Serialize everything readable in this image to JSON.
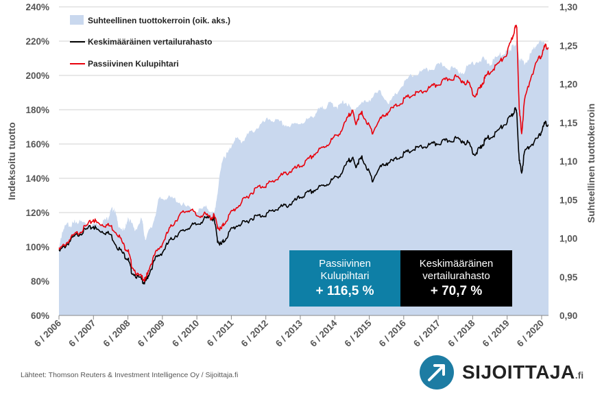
{
  "colors": {
    "area": "#c9d8ee",
    "passive": "#e8000b",
    "average": "#000000",
    "grid": "#d0d0d0",
    "axis_text": "#555555",
    "box_passive": "#0e7fa6",
    "box_average": "#000000",
    "logo_blue": "#1d7ca3"
  },
  "chart_data": {
    "type": "line",
    "ylabel": "Indeksoitu tuotto",
    "y2label": "Suhteellinen tuottokerroin",
    "ylim": [
      60,
      240
    ],
    "y_ticks": [
      "240%",
      "220%",
      "200%",
      "180%",
      "160%",
      "140%",
      "120%",
      "100%",
      "80%",
      "60%"
    ],
    "y2lim": [
      0.9,
      1.3
    ],
    "y2_ticks": [
      "1,30",
      "1,25",
      "1,20",
      "1,15",
      "1,10",
      "1,05",
      "1,00",
      "0,95",
      "0,90"
    ],
    "x_range": [
      2006.5,
      2020.7
    ],
    "x_ticks": [
      "6 / 2006",
      "6 / 2007",
      "6 / 2008",
      "6 / 2009",
      "6 / 2010",
      "6 / 2011",
      "6 / 2012",
      "6 / 2013",
      "6 / 2014",
      "6 / 2015",
      "6 / 2016",
      "6 / 2017",
      "6 / 2018",
      "6 / 2019",
      "6 / 2020"
    ],
    "grid": "horizontal",
    "legend_position": "top-left",
    "series": [
      {
        "name": "Suhteellinen tuottokerroin (oik. aks.)",
        "kind": "area",
        "axis": "right",
        "x": [
          2006.5,
          2006.6,
          2006.75,
          2006.9,
          2007.0,
          2007.25,
          2007.5,
          2007.7,
          2007.9,
          2008.0,
          2008.1,
          2008.2,
          2008.4,
          2008.5,
          2008.7,
          2008.9,
          2009.0,
          2009.2,
          2009.4,
          2009.6,
          2009.9,
          2010.2,
          2010.5,
          2010.8,
          2011.0,
          2011.1,
          2011.25,
          2011.4,
          2011.6,
          2011.8,
          2012.0,
          2012.3,
          2012.6,
          2012.9,
          2013.2,
          2013.5,
          2013.8,
          2014.0,
          2014.2,
          2014.4,
          2014.6,
          2014.8,
          2015.0,
          2015.2,
          2015.5,
          2015.8,
          2016.1,
          2016.4,
          2016.7,
          2017.0,
          2017.3,
          2017.6,
          2017.9,
          2018.2,
          2018.5,
          2018.8,
          2019.0,
          2019.3,
          2019.5,
          2019.6,
          2019.7,
          2019.78,
          2019.85,
          2020.0,
          2020.2,
          2020.4,
          2020.6,
          2020.7
        ],
        "values": [
          0.985,
          1.01,
          1.018,
          1.018,
          1.022,
          1.02,
          1.018,
          1.02,
          1.025,
          1.035,
          1.04,
          1.02,
          1.008,
          1.028,
          1.01,
          1.025,
          1.0,
          1.015,
          1.05,
          1.053,
          1.05,
          1.04,
          1.035,
          1.04,
          1.03,
          1.06,
          1.105,
          1.11,
          1.13,
          1.125,
          1.135,
          1.145,
          1.155,
          1.15,
          1.145,
          1.15,
          1.155,
          1.165,
          1.17,
          1.175,
          1.17,
          1.178,
          1.165,
          1.172,
          1.18,
          1.19,
          1.175,
          1.195,
          1.21,
          1.215,
          1.22,
          1.225,
          1.22,
          1.215,
          1.228,
          1.232,
          1.226,
          1.238,
          1.242,
          1.245,
          1.25,
          1.255,
          1.235,
          1.225,
          1.24,
          1.255,
          1.25,
          1.245
        ]
      },
      {
        "name": "Keskimääräinen vertailurahasto",
        "kind": "line",
        "axis": "left",
        "x": [
          2006.5,
          2006.7,
          2006.9,
          2007.1,
          2007.3,
          2007.5,
          2007.6,
          2007.8,
          2008.0,
          2008.2,
          2008.4,
          2008.5,
          2008.6,
          2008.8,
          2008.95,
          2009.0,
          2009.1,
          2009.3,
          2009.5,
          2009.7,
          2009.9,
          2010.1,
          2010.3,
          2010.5,
          2010.7,
          2010.9,
          2011.0,
          2011.1,
          2011.2,
          2011.3,
          2011.5,
          2011.7,
          2011.9,
          2012.1,
          2012.3,
          2012.5,
          2012.7,
          2012.9,
          2013.1,
          2013.3,
          2013.5,
          2013.7,
          2013.9,
          2014.1,
          2014.3,
          2014.5,
          2014.7,
          2014.9,
          2015.0,
          2015.1,
          2015.2,
          2015.3,
          2015.5,
          2015.6,
          2015.8,
          2016.0,
          2016.2,
          2016.4,
          2016.6,
          2016.8,
          2017.0,
          2017.2,
          2017.4,
          2017.6,
          2017.8,
          2018.0,
          2018.2,
          2018.4,
          2018.55,
          2018.7,
          2018.8,
          2018.9,
          2019.1,
          2019.3,
          2019.5,
          2019.65,
          2019.72,
          2019.78,
          2019.85,
          2019.92,
          2020.0,
          2020.2,
          2020.4,
          2020.5,
          2020.6,
          2020.7
        ],
        "values": [
          97,
          101,
          105,
          108,
          110,
          112,
          110,
          109,
          107,
          100,
          95,
          93,
          86,
          82,
          80,
          79,
          84,
          93,
          97,
          103,
          107,
          109,
          112,
          113,
          116,
          117,
          116,
          104,
          101,
          104,
          110,
          113,
          114,
          117,
          118,
          119,
          121,
          123,
          124,
          126,
          129,
          131,
          133,
          135,
          137,
          140,
          143,
          150,
          152,
          147,
          150,
          152,
          143,
          139,
          146,
          149,
          150,
          153,
          155,
          157,
          158,
          159,
          160,
          161,
          162,
          163,
          162,
          160,
          154,
          157,
          160,
          163,
          165,
          169,
          173,
          177,
          180,
          179,
          150,
          143,
          155,
          160,
          163,
          168,
          172,
          171
        ]
      },
      {
        "name": "Passiivinen Kulupihtari",
        "kind": "line",
        "axis": "left",
        "x": [
          2006.5,
          2006.7,
          2006.9,
          2007.1,
          2007.3,
          2007.5,
          2007.6,
          2007.8,
          2008.0,
          2008.2,
          2008.4,
          2008.5,
          2008.6,
          2008.8,
          2008.95,
          2009.0,
          2009.1,
          2009.3,
          2009.5,
          2009.7,
          2009.9,
          2010.1,
          2010.3,
          2010.5,
          2010.7,
          2010.9,
          2011.0,
          2011.1,
          2011.2,
          2011.3,
          2011.5,
          2011.7,
          2011.9,
          2012.1,
          2012.3,
          2012.5,
          2012.7,
          2012.9,
          2013.1,
          2013.3,
          2013.5,
          2013.7,
          2013.9,
          2014.1,
          2014.3,
          2014.5,
          2014.7,
          2014.9,
          2015.0,
          2015.1,
          2015.2,
          2015.3,
          2015.5,
          2015.6,
          2015.8,
          2016.0,
          2016.2,
          2016.4,
          2016.6,
          2016.8,
          2017.0,
          2017.2,
          2017.4,
          2017.6,
          2017.8,
          2018.0,
          2018.2,
          2018.4,
          2018.55,
          2018.7,
          2018.8,
          2018.9,
          2019.1,
          2019.3,
          2019.5,
          2019.65,
          2019.72,
          2019.78,
          2019.85,
          2019.92,
          2020.0,
          2020.2,
          2020.4,
          2020.5,
          2020.6,
          2020.7
        ],
        "values": [
          98,
          102,
          106,
          109,
          112,
          116,
          114,
          113,
          112,
          108,
          100,
          98,
          90,
          83,
          82,
          80,
          87,
          96,
          102,
          110,
          116,
          120,
          122,
          118,
          119,
          117,
          118,
          112,
          110,
          114,
          120,
          124,
          128,
          132,
          135,
          136,
          138,
          141,
          143,
          145,
          147,
          150,
          154,
          157,
          160,
          164,
          168,
          176,
          180,
          172,
          176,
          178,
          170,
          167,
          174,
          178,
          181,
          184,
          187,
          189,
          190,
          192,
          194,
          196,
          198,
          199,
          197,
          195,
          188,
          192,
          196,
          200,
          204,
          208,
          213,
          222,
          227,
          229,
          180,
          166,
          185,
          200,
          209,
          212,
          217,
          216
        ]
      }
    ],
    "annotations": [
      {
        "label": "Passiivinen Kulupihtari",
        "value": "+ 116,5 %"
      },
      {
        "label": "Keskimääräinen vertailurahasto",
        "value": "+ 70,7 %"
      }
    ],
    "source": "Lähteet: Thomson Reuters & Investment Intelligence Oy / Sijoittaja.fi"
  },
  "boxes": {
    "passive_label_line1": "Passiivinen",
    "passive_label_line2": "Kulupihtari",
    "passive_value": "+ 116,5 %",
    "average_label_line1": "Keskimääräinen",
    "average_label_line2": "vertailurahasto",
    "average_value": "+ 70,7 %"
  },
  "logo": {
    "name": "SIJOITTAJA",
    "suffix": ".fi"
  }
}
